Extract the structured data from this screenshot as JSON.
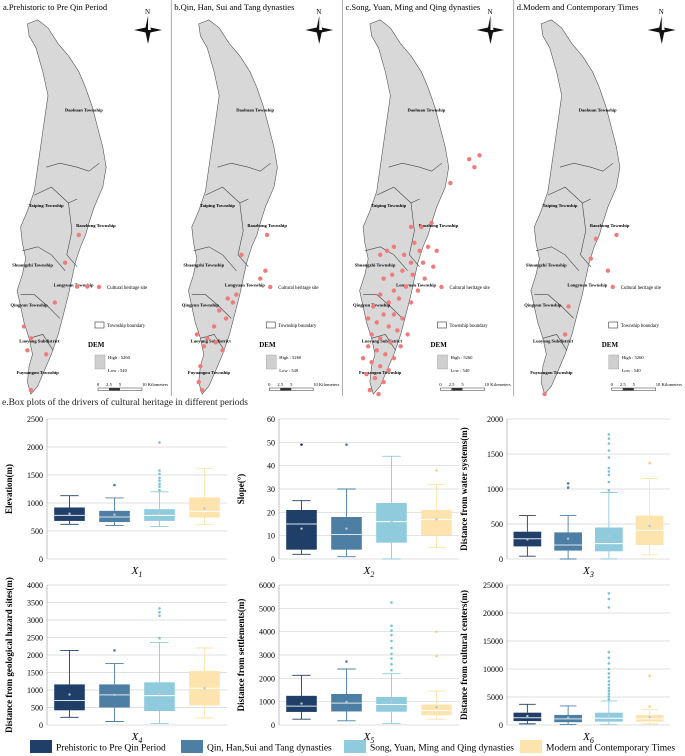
{
  "maps": {
    "panels": [
      {
        "title": "a.Prehistoric to Pre Qin Period",
        "scatter": "a"
      },
      {
        "title": "b.Qin, Han, Sui and Tang dynasties",
        "scatter": "b"
      },
      {
        "title": "c.Song, Yuan, Ming and Qing dynasties",
        "scatter": "c"
      },
      {
        "title": "d.Modern and Contemporary Times",
        "scatter": "d"
      }
    ],
    "north_label": "N",
    "townships": [
      "Daohuan Township",
      "Taiping Township",
      "Baozhong Township",
      "Shuangzhi Township",
      "Longyuan Township",
      "Qingyun Township",
      "Luoyang Subdistrict",
      "Fuyuangou Township"
    ],
    "legend_site": "Cultural heritage site",
    "legend_boundary": "Township boundary",
    "dem_title": "DEM",
    "dem_high": "High : 5260",
    "dem_low": "Low : 540",
    "scale_ticks": [
      "0",
      "2.5",
      "5",
      "10 Kilometers"
    ],
    "site_color": "#f07b7b",
    "terrain_color": "#d8d8d8"
  },
  "section_e_title": "e.Box plots of the drivers of cultural heritage in different periods",
  "chart_data": [
    {
      "type": "boxplot",
      "panel": "X1",
      "xlabel": "X1",
      "ylabel": "Elevation(m)",
      "ylim": [
        0,
        2500
      ],
      "yticks": [
        0,
        500,
        1000,
        1500,
        2000,
        2500
      ],
      "series": [
        {
          "name": "Prehistoric to Pre Qin Period",
          "min": 620,
          "q1": 680,
          "median": 780,
          "q3": 920,
          "max": 1130,
          "mean": 810,
          "outliers": []
        },
        {
          "name": "Qin, Han,Sui and Tang dynasties",
          "min": 600,
          "q1": 660,
          "median": 750,
          "q3": 860,
          "max": 1090,
          "mean": 790,
          "outliers": [
            1320
          ]
        },
        {
          "name": "Song, Yuan, Ming and Qing dynasties",
          "min": 580,
          "q1": 680,
          "median": 780,
          "q3": 890,
          "max": 1200,
          "mean": 820,
          "outliers": [
            1230,
            1290,
            1340,
            1400,
            1450,
            1520,
            1580,
            2080
          ]
        },
        {
          "name": "Modern and Contemporary Times",
          "min": 620,
          "q1": 740,
          "median": 850,
          "q3": 1100,
          "max": 1620,
          "mean": 900,
          "outliers": []
        }
      ]
    },
    {
      "type": "boxplot",
      "panel": "X2",
      "xlabel": "X2",
      "ylabel": "Slope(°)",
      "ylim": [
        0,
        60
      ],
      "yticks": [
        0,
        10,
        20,
        30,
        40,
        50,
        60
      ],
      "series": [
        {
          "name": "Prehistoric to Pre Qin Period",
          "min": 2,
          "q1": 4,
          "median": 15,
          "q3": 21,
          "max": 25,
          "mean": 13,
          "outliers": [
            49
          ]
        },
        {
          "name": "Qin, Han,Sui and Tang dynasties",
          "min": 1,
          "q1": 4,
          "median": 10.5,
          "q3": 18,
          "max": 30,
          "mean": 13,
          "outliers": [
            49
          ]
        },
        {
          "name": "Song, Yuan, Ming and Qing dynasties",
          "min": 0,
          "q1": 7,
          "median": 16,
          "q3": 24,
          "max": 44,
          "mean": 16,
          "outliers": []
        },
        {
          "name": "Modern and Contemporary Times",
          "min": 5,
          "q1": 10,
          "median": 17,
          "q3": 21,
          "max": 32,
          "mean": 17,
          "outliers": [
            38
          ]
        }
      ]
    },
    {
      "type": "boxplot",
      "panel": "X3",
      "xlabel": "X3",
      "ylabel": "Distance from water systems(m)",
      "ylim": [
        0,
        2000
      ],
      "yticks": [
        0,
        500,
        1000,
        1500,
        2000
      ],
      "series": [
        {
          "name": "Prehistoric to Pre Qin Period",
          "min": 40,
          "q1": 180,
          "median": 290,
          "q3": 390,
          "max": 620,
          "mean": 280,
          "outliers": []
        },
        {
          "name": "Qin, Han,Sui and Tang dynasties",
          "min": 0,
          "q1": 120,
          "median": 200,
          "q3": 380,
          "max": 620,
          "mean": 290,
          "outliers": [
            1020,
            1080
          ]
        },
        {
          "name": "Song, Yuan, Ming and Qing dynasties",
          "min": 0,
          "q1": 110,
          "median": 220,
          "q3": 450,
          "max": 950,
          "mean": 330,
          "outliers": [
            980,
            1100,
            1200,
            1250,
            1300,
            1450,
            1550,
            1650,
            1720,
            1780
          ]
        },
        {
          "name": "Modern and Contemporary Times",
          "min": 60,
          "q1": 200,
          "median": 410,
          "q3": 620,
          "max": 1150,
          "mean": 470,
          "outliers": [
            1370
          ]
        }
      ]
    },
    {
      "type": "boxplot",
      "panel": "X4",
      "xlabel": "X4",
      "ylabel": "Distance from geological hazard sites(m)",
      "ylim": [
        0,
        4000
      ],
      "yticks": [
        0,
        500,
        1000,
        1500,
        2000,
        2500,
        3000,
        3500,
        4000
      ],
      "series": [
        {
          "name": "Prehistoric to Pre Qin Period",
          "min": 220,
          "q1": 420,
          "median": 700,
          "q3": 1160,
          "max": 2130,
          "mean": 870,
          "outliers": []
        },
        {
          "name": "Qin, Han,Sui and Tang dynasties",
          "min": 100,
          "q1": 500,
          "median": 860,
          "q3": 1160,
          "max": 1760,
          "mean": 860,
          "outliers": [
            2130
          ]
        },
        {
          "name": "Song, Yuan, Ming and Qing dynasties",
          "min": 40,
          "q1": 400,
          "median": 840,
          "q3": 1220,
          "max": 2360,
          "mean": 880,
          "outliers": [
            2480,
            3120,
            3220,
            3330
          ]
        },
        {
          "name": "Modern and Contemporary Times",
          "min": 200,
          "q1": 560,
          "median": 1050,
          "q3": 1540,
          "max": 2200,
          "mean": 1050,
          "outliers": []
        }
      ]
    },
    {
      "type": "boxplot",
      "panel": "X5",
      "xlabel": "X5",
      "ylabel": "Distance from settlements(m)",
      "ylim": [
        0,
        6000
      ],
      "yticks": [
        0,
        1000,
        2000,
        3000,
        4000,
        5000,
        6000
      ],
      "series": [
        {
          "name": "Prehistoric to Pre Qin Period",
          "min": 250,
          "q1": 560,
          "median": 810,
          "q3": 1250,
          "max": 2130,
          "mean": 920,
          "outliers": []
        },
        {
          "name": "Qin, Han,Sui and Tang dynasties",
          "min": 180,
          "q1": 580,
          "median": 940,
          "q3": 1330,
          "max": 2400,
          "mean": 990,
          "outliers": [
            2720
          ]
        },
        {
          "name": "Song, Yuan, Ming and Qing dynasties",
          "min": 60,
          "q1": 570,
          "median": 880,
          "q3": 1200,
          "max": 2200,
          "mean": 1000,
          "outliers": [
            2350,
            2600,
            2850,
            3050,
            3300,
            3600,
            3850,
            4050,
            4250,
            5250
          ]
        },
        {
          "name": "Modern and Contemporary Times",
          "min": 250,
          "q1": 420,
          "median": 620,
          "q3": 880,
          "max": 1450,
          "mean": 760,
          "outliers": [
            2950,
            4000
          ]
        }
      ]
    },
    {
      "type": "boxplot",
      "panel": "X6",
      "xlabel": "X6",
      "ylabel": "Distance from cultural centers(m)",
      "ylim": [
        0,
        25000
      ],
      "yticks": [
        0,
        5000,
        10000,
        15000,
        20000,
        25000
      ],
      "series": [
        {
          "name": "Prehistoric to Pre Qin Period",
          "min": 200,
          "q1": 700,
          "median": 1300,
          "q3": 2200,
          "max": 3700,
          "mean": 1600,
          "outliers": []
        },
        {
          "name": "Qin, Han,Sui and Tang dynasties",
          "min": 100,
          "q1": 500,
          "median": 1100,
          "q3": 1800,
          "max": 3400,
          "mean": 1300,
          "outliers": []
        },
        {
          "name": "Song, Yuan, Ming and Qing dynasties",
          "min": 50,
          "q1": 600,
          "median": 1200,
          "q3": 2200,
          "max": 4300,
          "mean": 1700,
          "outliers": [
            4600,
            5100,
            5600,
            6100,
            6600,
            7200,
            7800,
            8500,
            9200,
            10000,
            11000,
            12000,
            13000,
            21000,
            22500,
            23500
          ]
        },
        {
          "name": "Modern and Contemporary Times",
          "min": 200,
          "q1": 600,
          "median": 1100,
          "q3": 1800,
          "max": 2800,
          "mean": 1400,
          "outliers": [
            3300,
            8800
          ]
        }
      ]
    }
  ],
  "chart_style": {
    "colors": [
      "#1f3f68",
      "#4d7fa5",
      "#8fcbdc",
      "#fde3ad"
    ],
    "outlier_colors": [
      "#1f3f68",
      "#4d7fa5",
      "#7ac1d6",
      "#f5cf85"
    ],
    "grid_color": "#d4d4d4",
    "mean_color": "#b8c4d6"
  },
  "legend": {
    "items": [
      "Prehistoric to Pre Qin Period",
      "Qin, Han,Sui and Tang dynasties",
      "Song, Yuan, Ming and Qing dynasties",
      "Modern and Contemporary Times"
    ]
  }
}
